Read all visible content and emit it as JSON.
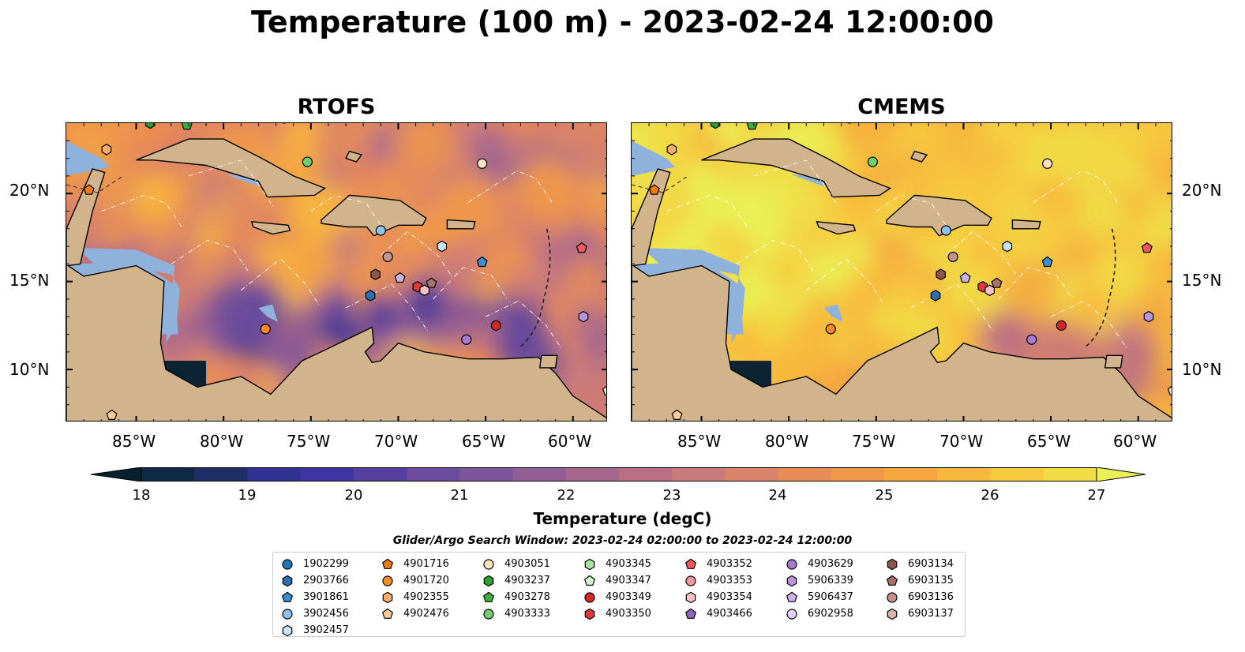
{
  "figure": {
    "title": "Temperature (100 m) - 2023-02-24 12:00:00"
  },
  "panels": [
    {
      "title": "RTOFS",
      "palette": "warm"
    },
    {
      "title": "CMEMS",
      "palette": "hot"
    }
  ],
  "axes": {
    "longitude_ticks": [
      "85°W",
      "80°W",
      "75°W",
      "70°W",
      "65°W",
      "60°W"
    ],
    "latitude_ticks": [
      "20°N",
      "15°N",
      "10°N"
    ],
    "lon_range": [
      -89.0,
      -58.0
    ],
    "lat_range": [
      7.0,
      24.0
    ]
  },
  "colorbar": {
    "label": "Temperature (degC)",
    "ticks": [
      "18",
      "19",
      "20",
      "21",
      "22",
      "23",
      "24",
      "25",
      "26",
      "27"
    ],
    "range": [
      18,
      27
    ],
    "colors": [
      "#07202f",
      "#0f2a45",
      "#1e2f66",
      "#2e3190",
      "#3f35a0",
      "#5540a0",
      "#6a4b9e",
      "#7e559b",
      "#935e96",
      "#a6678f",
      "#b96f86",
      "#cb7a7a",
      "#d9836a",
      "#e68d58",
      "#f09949",
      "#f6a83f",
      "#f8b83d",
      "#f7cb3f",
      "#f1dc46",
      "#eaf055"
    ],
    "extend": "both"
  },
  "search_window": "Glider/Argo Search Window: 2023-02-24 02:00:00 to 2023-02-24 12:00:00",
  "legend": [
    [
      {
        "id": "1902299",
        "marker": "circle",
        "color": "#1f77b4"
      },
      {
        "id": "2903766",
        "marker": "hexagon",
        "color": "#2a6fb0"
      },
      {
        "id": "3901861",
        "marker": "pentagon",
        "color": "#3a8fd0"
      },
      {
        "id": "3902456",
        "marker": "circle",
        "color": "#8ec2ee"
      },
      {
        "id": "3902457",
        "marker": "hexagon",
        "color": "#c9e3f8"
      }
    ],
    [
      {
        "id": "4901716",
        "marker": "pentagon",
        "color": "#f07a10"
      },
      {
        "id": "4901720",
        "marker": "circle",
        "color": "#ff8a2a"
      },
      {
        "id": "4902355",
        "marker": "hexagon",
        "color": "#ffae6a"
      },
      {
        "id": "4902476",
        "marker": "pentagon",
        "color": "#ffcb95"
      }
    ],
    [
      {
        "id": "4903051",
        "marker": "circle",
        "color": "#ffe2c2"
      },
      {
        "id": "4903237",
        "marker": "hexagon",
        "color": "#2ca02c"
      },
      {
        "id": "4903278",
        "marker": "pentagon",
        "color": "#3cb03c"
      },
      {
        "id": "4903333",
        "marker": "circle",
        "color": "#6fcf6f"
      }
    ],
    [
      {
        "id": "4903345",
        "marker": "hexagon",
        "color": "#a8e6a0"
      },
      {
        "id": "4903347",
        "marker": "pentagon",
        "color": "#d4f5cc"
      },
      {
        "id": "4903349",
        "marker": "circle",
        "color": "#d62728"
      },
      {
        "id": "4903350",
        "marker": "hexagon",
        "color": "#e0393b"
      }
    ],
    [
      {
        "id": "4903352",
        "marker": "pentagon",
        "color": "#f05a5c"
      },
      {
        "id": "4903353",
        "marker": "circle",
        "color": "#f59a9b"
      },
      {
        "id": "4903354",
        "marker": "hexagon",
        "color": "#fbc4c4"
      },
      {
        "id": "4903466",
        "marker": "pentagon",
        "color": "#9467bd"
      }
    ],
    [
      {
        "id": "4903629",
        "marker": "circle",
        "color": "#a57ad0"
      },
      {
        "id": "5906339",
        "marker": "hexagon",
        "color": "#b894dc"
      },
      {
        "id": "5906437",
        "marker": "pentagon",
        "color": "#cdb2ea"
      },
      {
        "id": "6902958",
        "marker": "circle",
        "color": "#e3d2f5"
      }
    ],
    [
      {
        "id": "6903134",
        "marker": "hexagon",
        "color": "#8c564b"
      },
      {
        "id": "6903135",
        "marker": "pentagon",
        "color": "#a8716a"
      },
      {
        "id": "6903136",
        "marker": "circle",
        "color": "#c4928a"
      },
      {
        "id": "6903137",
        "marker": "hexagon",
        "color": "#ddb2aa"
      }
    ]
  ],
  "floats": [
    {
      "id": "4901716",
      "lon": -87.7,
      "lat": 20.2
    },
    {
      "id": "3902457",
      "lon": -67.5,
      "lat": 17.0
    },
    {
      "id": "4903333",
      "lon": -75.2,
      "lat": 21.8
    },
    {
      "id": "4902355",
      "lon": -86.7,
      "lat": 22.5
    },
    {
      "id": "3902456",
      "lon": -71.0,
      "lat": 17.9
    },
    {
      "id": "4901720",
      "lon": -77.6,
      "lat": 12.3
    },
    {
      "id": "2903766",
      "lon": -71.6,
      "lat": 14.2
    },
    {
      "id": "3901861",
      "lon": -65.2,
      "lat": 16.1
    },
    {
      "id": "4903352",
      "lon": -59.5,
      "lat": 16.9
    },
    {
      "id": "5906339",
      "lon": -59.4,
      "lat": 13.0
    },
    {
      "id": "4903349",
      "lon": -64.4,
      "lat": 12.5
    },
    {
      "id": "6903136",
      "lon": -70.6,
      "lat": 16.4
    },
    {
      "id": "6903134",
      "lon": -71.3,
      "lat": 15.4
    },
    {
      "id": "5906437",
      "lon": -69.9,
      "lat": 15.2
    },
    {
      "id": "4903350",
      "lon": -68.9,
      "lat": 14.7
    },
    {
      "id": "4903354",
      "lon": -68.5,
      "lat": 14.5
    },
    {
      "id": "6903135",
      "lon": -68.1,
      "lat": 14.9
    },
    {
      "id": "4903629",
      "lon": -66.1,
      "lat": 11.7
    },
    {
      "id": "4903051",
      "lon": -65.2,
      "lat": 21.7
    },
    {
      "id": "4903278",
      "lon": -82.1,
      "lat": 23.9
    },
    {
      "id": "4903237",
      "lon": -84.2,
      "lat": 24.0
    },
    {
      "id": "4902476",
      "lon": -86.4,
      "lat": 7.4
    },
    {
      "id": "4903347",
      "lon": -58.0,
      "lat": 8.8
    }
  ]
}
